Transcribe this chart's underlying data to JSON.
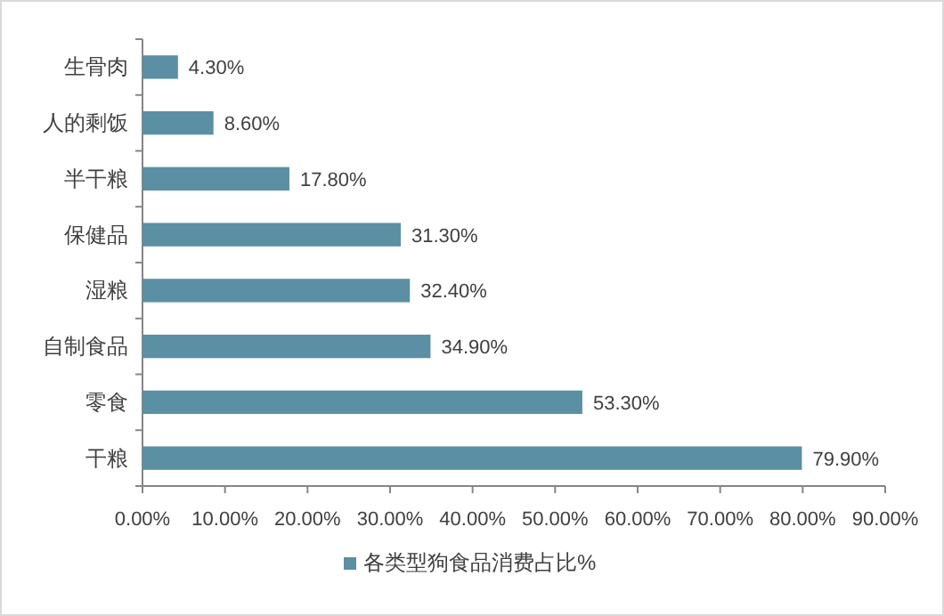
{
  "chart_data": {
    "type": "bar",
    "orientation": "horizontal",
    "categories": [
      "生骨肉",
      "人的剩饭",
      "半干粮",
      "保健品",
      "湿粮",
      "自制食品",
      "零食",
      "干粮"
    ],
    "series": [
      {
        "name": "各类型狗食品消费占比%",
        "color": "#5b8fa3",
        "values": [
          4.3,
          8.6,
          17.8,
          31.3,
          32.4,
          34.9,
          53.3,
          79.9
        ],
        "value_labels": [
          "4.30%",
          "8.60%",
          "17.80%",
          "31.30%",
          "32.40%",
          "34.90%",
          "53.30%",
          "79.90%"
        ]
      }
    ],
    "xlim": [
      0,
      90
    ],
    "xticks": [
      {
        "value": 0,
        "label": "0.00%"
      },
      {
        "value": 10,
        "label": "10.00%"
      },
      {
        "value": 20,
        "label": "20.00%"
      },
      {
        "value": 30,
        "label": "30.00%"
      },
      {
        "value": 40,
        "label": "40.00%"
      },
      {
        "value": 50,
        "label": "50.00%"
      },
      {
        "value": 60,
        "label": "60.00%"
      },
      {
        "value": 70,
        "label": "70.00%"
      },
      {
        "value": 80,
        "label": "80.00%"
      },
      {
        "value": 90,
        "label": "90.00%"
      }
    ],
    "legend": "bottom",
    "grid": false
  }
}
